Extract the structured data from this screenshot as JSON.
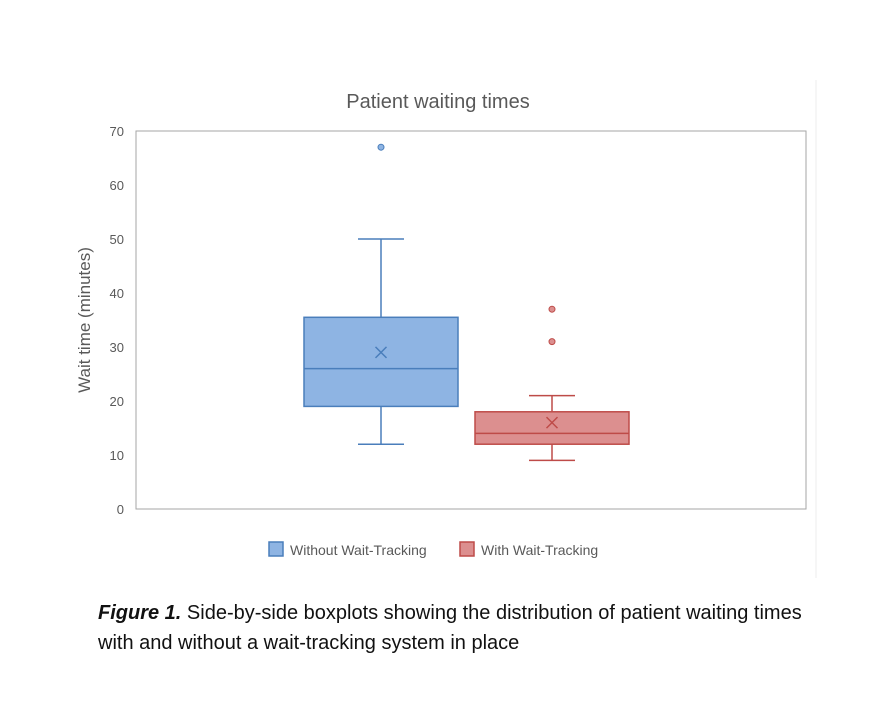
{
  "chart_data": {
    "type": "boxplot",
    "title": "Patient waiting times",
    "ylabel": "Wait time (minutes)",
    "xlabel": "",
    "ylim": [
      0,
      70
    ],
    "yticks": [
      0,
      10,
      20,
      30,
      40,
      50,
      60,
      70
    ],
    "grid": false,
    "legend_position": "bottom",
    "series": [
      {
        "name": "Without Wait-Tracking",
        "color": "#8eb4e3",
        "edge_color": "#4a7ebb",
        "whisker_low": 12,
        "q1": 19,
        "median": 26,
        "q3": 35.5,
        "whisker_high": 50,
        "mean": 29,
        "outliers": [
          67
        ]
      },
      {
        "name": "With Wait-Tracking",
        "color": "#dc8f8f",
        "edge_color": "#be4b48",
        "whisker_low": 9,
        "q1": 12,
        "median": 14,
        "q3": 18,
        "whisker_high": 21,
        "mean": 16,
        "outliers": [
          31,
          37
        ]
      }
    ]
  },
  "caption": {
    "label": "Figure 1.",
    "text": " Side-by-side boxplots showing the distribution of patient waiting times with and without a wait-tracking system in place"
  }
}
